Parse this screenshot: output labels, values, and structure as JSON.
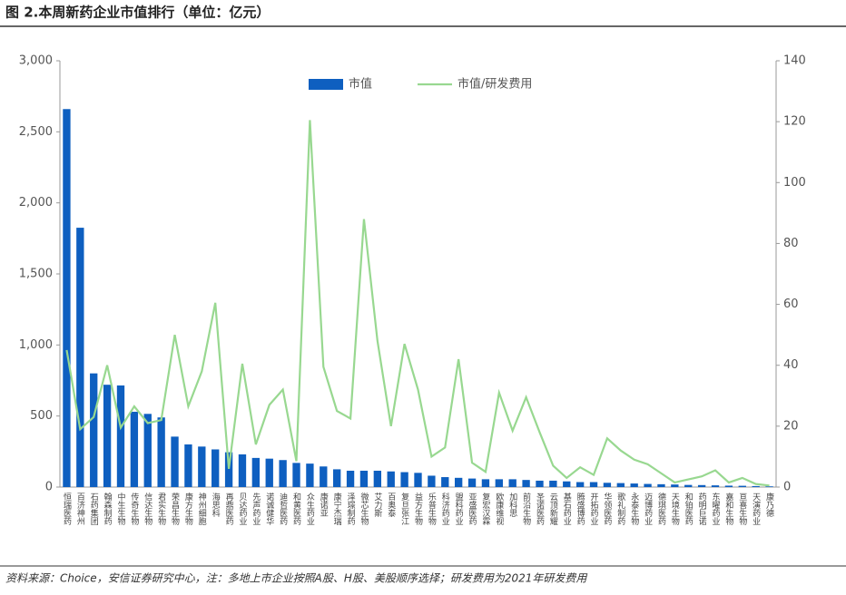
{
  "title": "图 2.本周新药企业市值排行（单位：亿元）",
  "source": "资料来源：Choice，安信证券研究中心，注：多地上市企业按照A股、H股、美股顺序选择；研发费用为2021年研发费用",
  "chart_data": {
    "type": "bar",
    "categories": [
      "恒瑞医药",
      "百济神州",
      "石药集团",
      "翰森制药",
      "中生生物",
      "传奇生物",
      "信达生物",
      "君实生物",
      "荣昌生物",
      "康方生物",
      "神州细胞",
      "海思科",
      "再鼎医药",
      "贝达药业",
      "先声药业",
      "诺诚健华",
      "迪哲医药",
      "和黄医药",
      "众生药业",
      "康诺亚",
      "康宁杰瑞",
      "泽璟制药",
      "微芯生物",
      "艾力斯",
      "百奥泰",
      "复旦张江",
      "益方生物",
      "乐普生物",
      "科济药业",
      "盟科药业",
      "亚盛医药",
      "复宏汉霖",
      "欧康维视",
      "加科思",
      "前沿生物",
      "圣诺医药",
      "云顶新耀",
      "基石药业",
      "腾盛博药",
      "开拓药业",
      "华领医药",
      "歌礼制药",
      "永泰生物",
      "迈博药业",
      "德琪医药",
      "天境生物",
      "和铂医药",
      "药明巨诺",
      "东曜药业",
      "嘉和生物",
      "亘喜生物",
      "天演药业",
      "康乃德"
    ],
    "series": [
      {
        "name": "市值",
        "color": "#0e5fc0",
        "values": [
          2660,
          1825,
          800,
          720,
          715,
          530,
          515,
          490,
          355,
          300,
          285,
          265,
          245,
          230,
          205,
          200,
          190,
          170,
          165,
          145,
          125,
          115,
          115,
          115,
          110,
          105,
          100,
          80,
          70,
          65,
          60,
          55,
          55,
          55,
          50,
          45,
          45,
          40,
          35,
          35,
          30,
          28,
          25,
          22,
          20,
          18,
          15,
          14,
          12,
          10,
          9,
          7,
          5
        ]
      },
      {
        "name": "市值/研发费用",
        "color": "#98d890",
        "type": "line",
        "axis": "y2",
        "values": [
          45,
          19,
          23,
          40,
          19.5,
          26.5,
          21,
          22,
          50,
          26.5,
          38,
          60.5,
          6,
          40.5,
          14,
          27,
          32,
          8.5,
          120.5,
          39.5,
          25,
          22.5,
          88,
          48,
          20,
          47,
          32,
          10,
          13,
          42,
          8,
          5,
          31,
          18.5,
          29.5,
          18,
          7,
          3,
          6.5,
          4,
          16,
          12,
          9,
          7.5,
          4.5,
          1.5,
          2.5,
          3.5,
          5.5,
          1.5,
          3,
          1,
          0.5
        ]
      }
    ],
    "ylim": [
      0,
      3000
    ],
    "yticks": [
      0,
      {
        "value": 500,
        "label": "500"
      },
      {
        "value": 1000,
        "label": "1,000"
      },
      {
        "value": 1500,
        "label": "1,500"
      },
      {
        "value": 2000,
        "label": "2,000"
      },
      {
        "value": 2500,
        "label": "2,500"
      },
      {
        "value": 3000,
        "label": "3,000"
      }
    ],
    "y2lim": [
      0,
      140
    ],
    "y2ticks": [
      0,
      20,
      40,
      60,
      80,
      100,
      120,
      140
    ]
  }
}
